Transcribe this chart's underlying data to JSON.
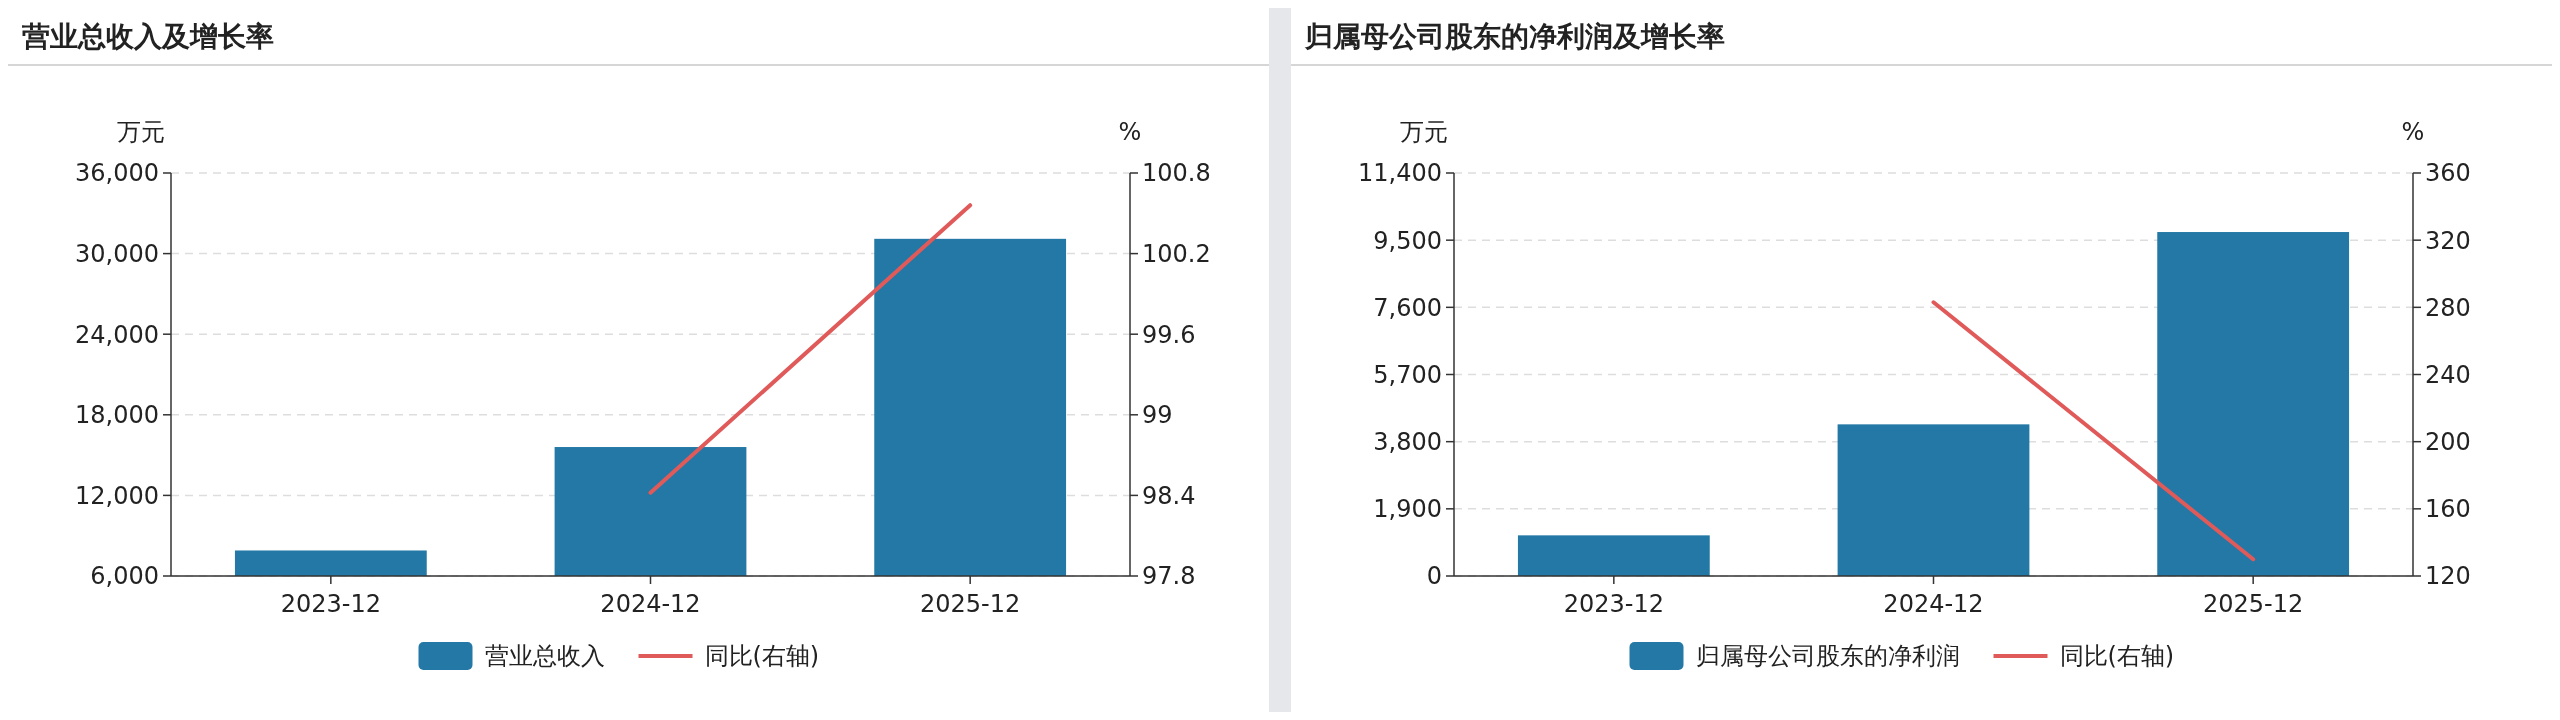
{
  "chart_data": [
    {
      "type": "bar",
      "title": "营业总收入及增长率",
      "categories": [
        "2023-12",
        "2024-12",
        "2025-12"
      ],
      "ylabel": "万元",
      "y2label": "%",
      "series": [
        {
          "name": "营业总收入",
          "color": "#2378a5",
          "values": [
            7900,
            15600,
            31100
          ]
        },
        {
          "name": "同比(右轴)",
          "type": "line",
          "axis": "y2",
          "color": "#e05a5a",
          "values": [
            null,
            98.42,
            100.56
          ]
        }
      ],
      "ylim": [
        6000,
        36000
      ],
      "yticks": [
        {
          "value": 6000,
          "label": "6,000"
        },
        {
          "value": 12000,
          "label": "12,000"
        },
        {
          "value": 18000,
          "label": "18,000"
        },
        {
          "value": 24000,
          "label": "24,000"
        },
        {
          "value": 30000,
          "label": "30,000"
        },
        {
          "value": 36000,
          "label": "36,000"
        }
      ],
      "y2lim": [
        97.8,
        100.8
      ],
      "y2ticks": [
        97.8,
        98.4,
        99,
        99.6,
        100.2,
        100.8
      ],
      "grid": "y",
      "legend": "bottom"
    },
    {
      "type": "bar",
      "title": "归属母公司股东的净利润及增长率",
      "categories": [
        "2023-12",
        "2024-12",
        "2025-12"
      ],
      "ylabel": "万元",
      "y2label": "%",
      "series": [
        {
          "name": "归属母公司股东的净利润",
          "color": "#2378a5",
          "values": [
            1150,
            4290,
            9730
          ]
        },
        {
          "name": "同比(右轴)",
          "type": "line",
          "axis": "y2",
          "color": "#e05a5a",
          "values": [
            null,
            283,
            130
          ]
        }
      ],
      "ylim": [
        0,
        11400
      ],
      "yticks": [
        0,
        {
          "value": 1900,
          "label": "1,900"
        },
        {
          "value": 3800,
          "label": "3,800"
        },
        {
          "value": 5700,
          "label": "5,700"
        },
        {
          "value": 7600,
          "label": "7,600"
        },
        {
          "value": 9500,
          "label": "9,500"
        },
        {
          "value": 11400,
          "label": "11,400"
        }
      ],
      "y2lim": [
        120,
        360
      ],
      "y2ticks": [
        120,
        160,
        200,
        240,
        280,
        320,
        360
      ],
      "grid": "y",
      "legend": "bottom"
    }
  ]
}
